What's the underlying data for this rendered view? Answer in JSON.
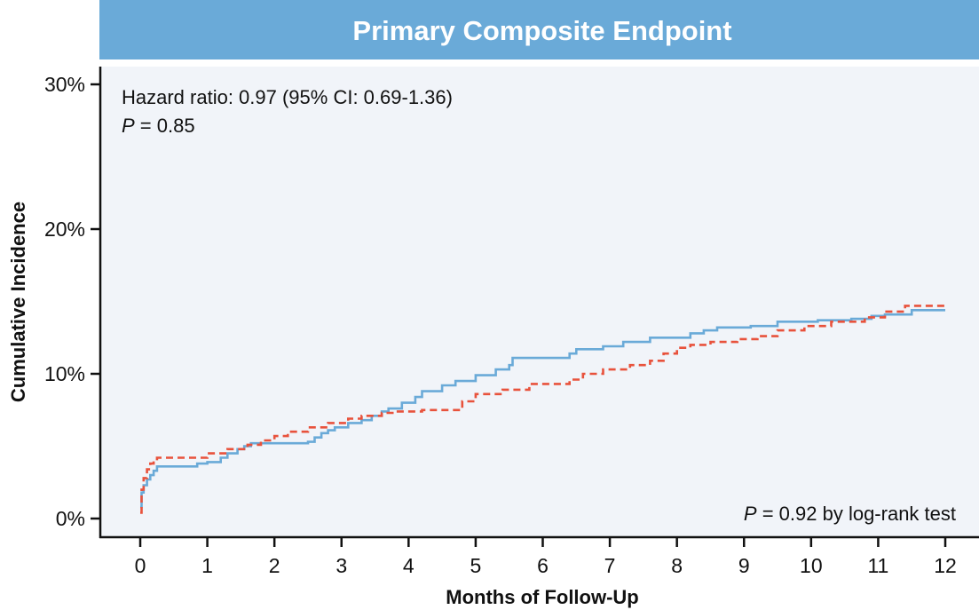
{
  "chart_data": {
    "type": "line",
    "title": "Primary Composite Endpoint",
    "xlabel": "Months of Follow-Up",
    "ylabel": "Cumulative Incidence",
    "xlim": [
      0,
      12
    ],
    "ylim": [
      0,
      30
    ],
    "x_ticks": [
      0,
      1,
      2,
      3,
      4,
      5,
      6,
      7,
      8,
      9,
      10,
      11,
      12
    ],
    "y_ticks": [
      0,
      10,
      20,
      30
    ],
    "y_tick_labels": [
      "0%",
      "10%",
      "20%",
      "30%"
    ],
    "grid": false,
    "step": true,
    "annotations": {
      "hazard_ratio": "Hazard ratio: 0.97 (95% CI: 0.69-1.36)",
      "p_label": "P",
      "p_value": " = 0.85",
      "logrank_p_label": "P",
      "logrank_text": " = 0.92 by log-rank test"
    },
    "series": [
      {
        "color": "#6aaad8",
        "dash": "solid",
        "x": [
          0,
          0.02,
          0.05,
          0.1,
          0.15,
          0.2,
          0.25,
          0.8,
          0.85,
          1.0,
          1.2,
          1.3,
          1.45,
          1.55,
          1.65,
          2.0,
          2.5,
          2.6,
          2.7,
          2.8,
          2.9,
          3.1,
          3.3,
          3.45,
          3.6,
          3.7,
          3.9,
          4.1,
          4.2,
          4.5,
          4.7,
          5.0,
          5.3,
          5.5,
          5.55,
          6.3,
          6.4,
          6.5,
          6.9,
          7.2,
          7.6,
          8.2,
          8.4,
          8.6,
          9.1,
          9.5,
          10.1,
          10.6,
          10.9,
          11.1,
          11.5,
          12.0
        ],
        "y": [
          0.8,
          1.8,
          2.3,
          2.7,
          3.0,
          3.3,
          3.6,
          3.6,
          3.8,
          3.9,
          4.2,
          4.5,
          4.8,
          5.0,
          5.2,
          5.2,
          5.3,
          5.6,
          5.9,
          6.1,
          6.3,
          6.6,
          6.8,
          7.1,
          7.4,
          7.6,
          8.0,
          8.4,
          8.8,
          9.2,
          9.5,
          9.9,
          10.3,
          10.6,
          11.1,
          11.1,
          11.4,
          11.7,
          11.9,
          12.2,
          12.5,
          12.8,
          13.0,
          13.2,
          13.3,
          13.6,
          13.7,
          13.8,
          14.0,
          14.1,
          14.4,
          14.4
        ]
      },
      {
        "color": "#e8523c",
        "dash": "dashed",
        "x": [
          0,
          0.02,
          0.05,
          0.1,
          0.15,
          0.2,
          0.25,
          0.9,
          1.0,
          1.3,
          1.6,
          1.8,
          2.0,
          2.2,
          2.5,
          2.8,
          3.1,
          3.3,
          3.6,
          3.8,
          4.2,
          4.5,
          4.8,
          5.0,
          5.4,
          5.8,
          6.4,
          6.6,
          6.9,
          7.3,
          7.6,
          7.8,
          8.0,
          8.2,
          8.5,
          8.9,
          9.2,
          9.5,
          9.9,
          10.3,
          10.8,
          11.1,
          11.4,
          12.0
        ],
        "y": [
          0.4,
          2.0,
          2.8,
          3.4,
          3.8,
          4.0,
          4.2,
          4.2,
          4.5,
          4.8,
          5.1,
          5.4,
          5.7,
          6.0,
          6.3,
          6.6,
          6.9,
          7.1,
          7.3,
          7.4,
          7.5,
          7.5,
          8.1,
          8.6,
          8.9,
          9.3,
          9.6,
          10.0,
          10.3,
          10.6,
          10.9,
          11.4,
          11.8,
          12.0,
          12.2,
          12.4,
          12.6,
          13.0,
          13.3,
          13.6,
          13.9,
          14.3,
          14.7,
          14.8
        ]
      }
    ]
  }
}
